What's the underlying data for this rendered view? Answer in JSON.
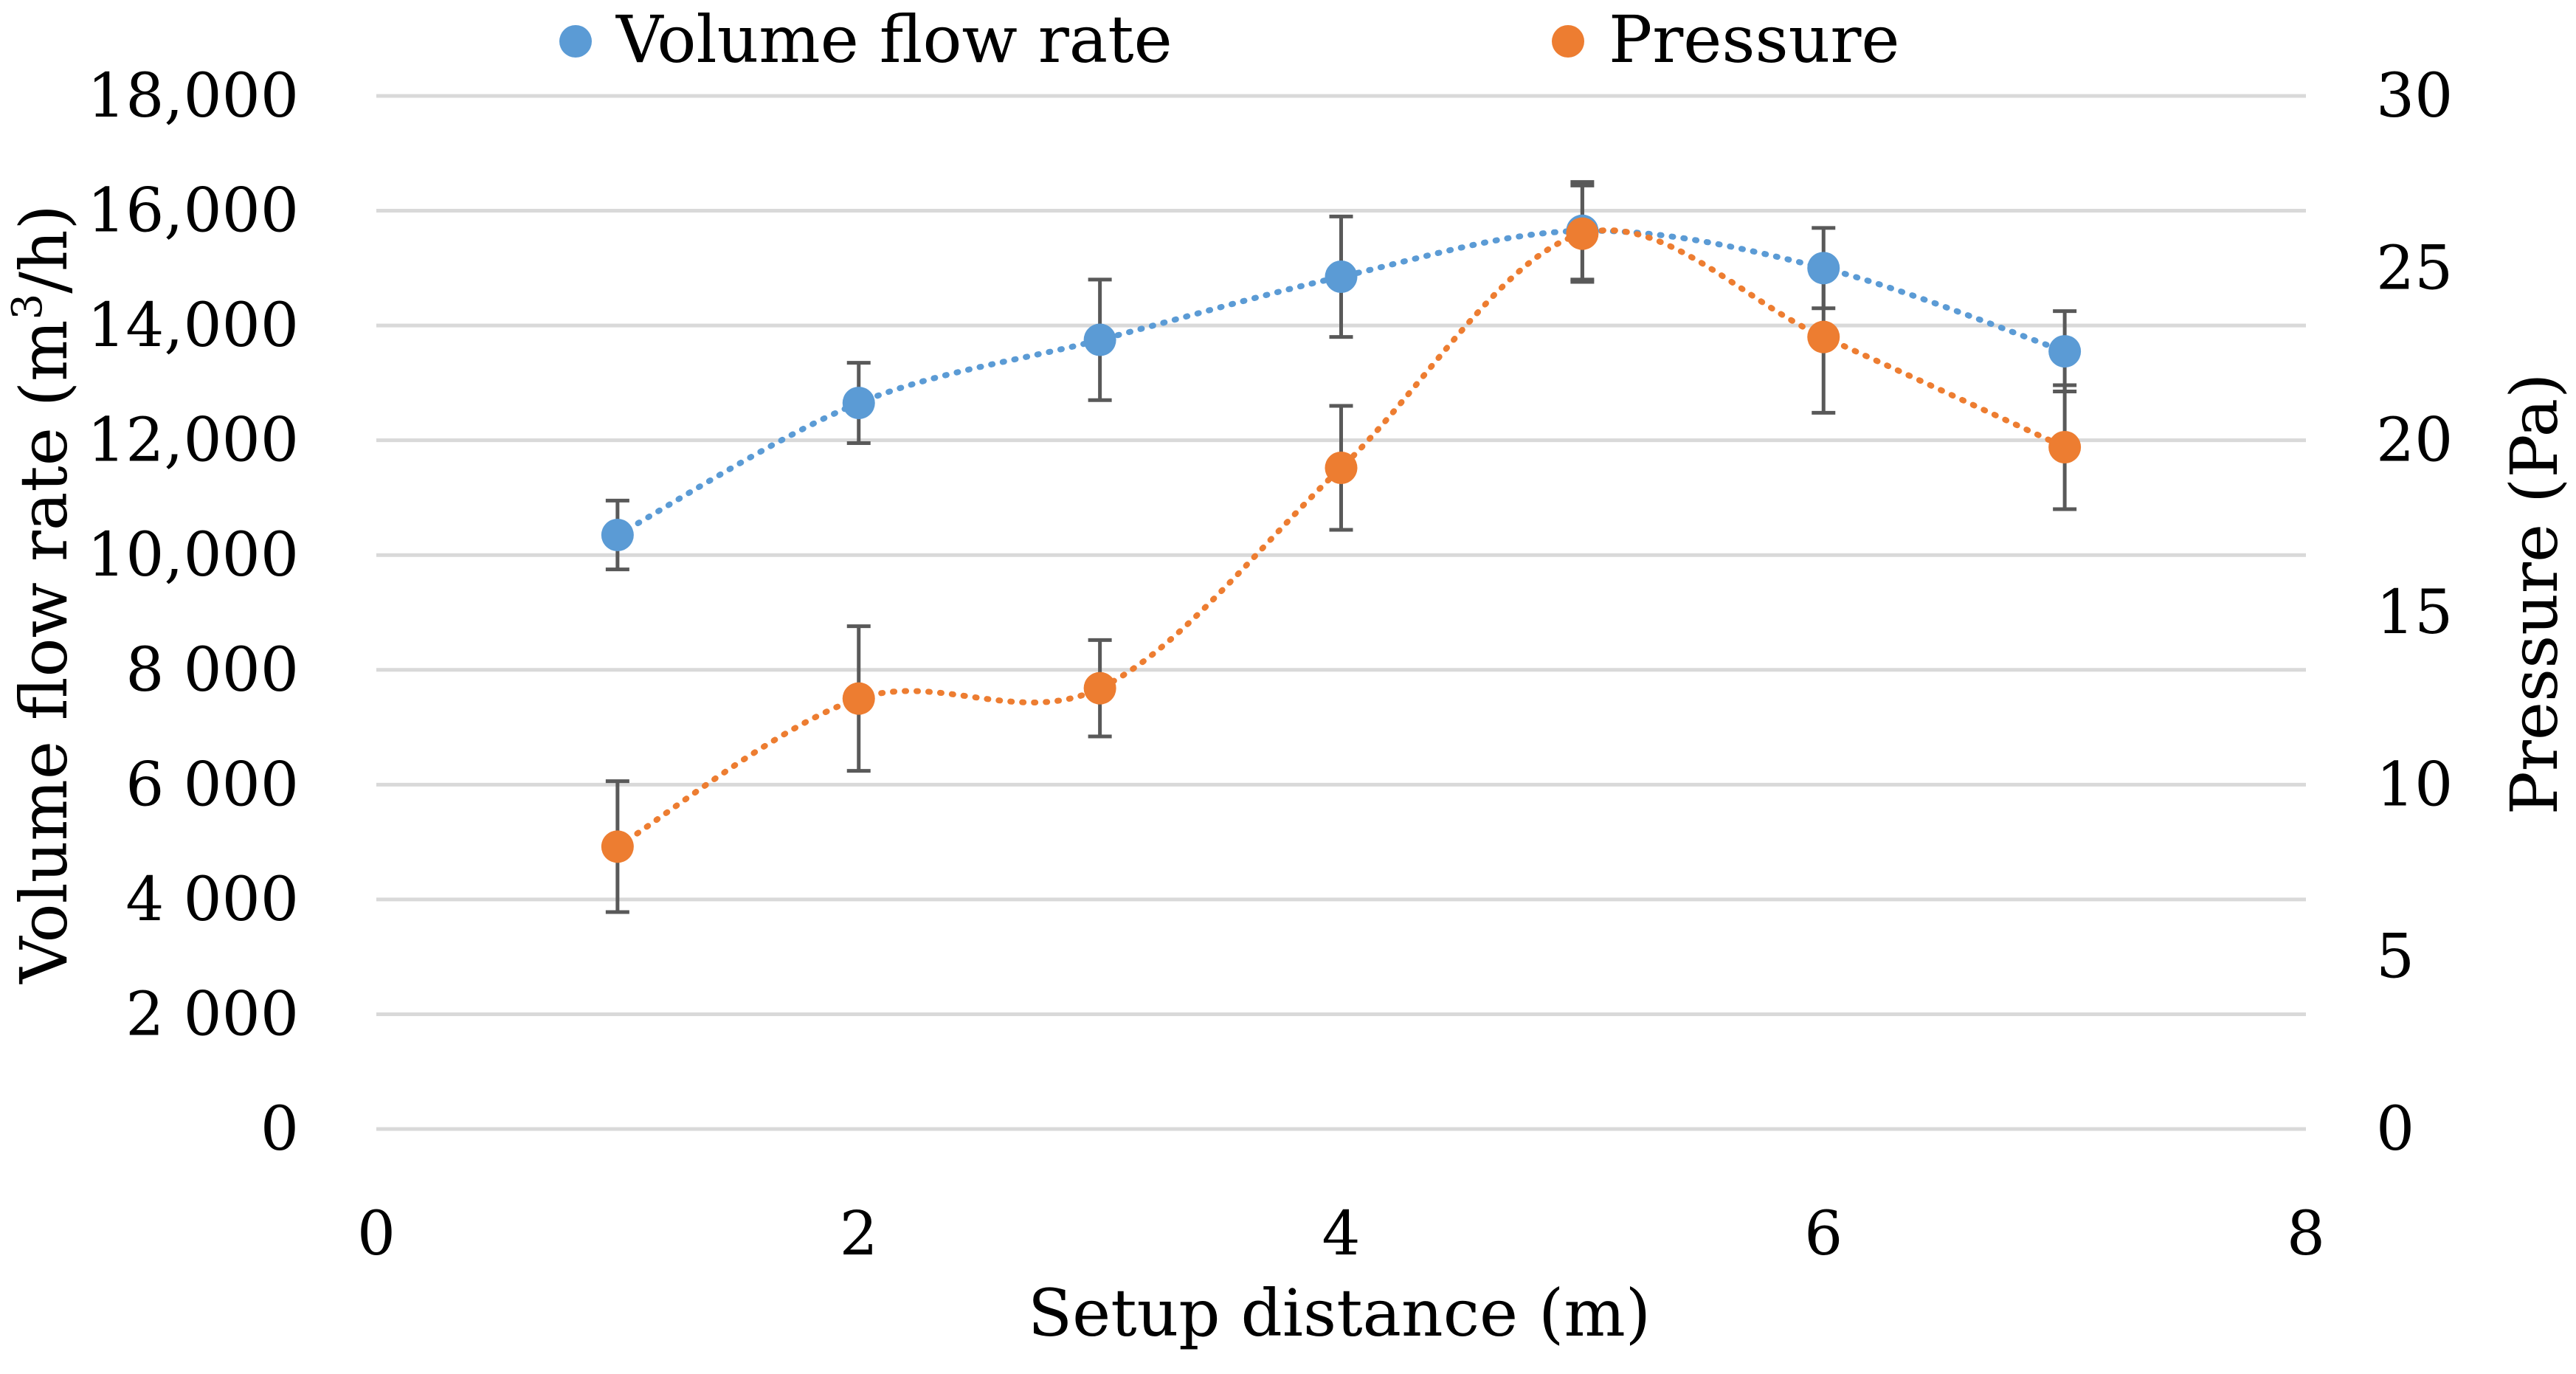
{
  "chart_data": {
    "type": "scatter",
    "title": "",
    "xlabel": "Setup distance (m)",
    "ylabel_left": "Volume flow rate (m3/h)",
    "ylabel_left_base": "Volume flow rate (m",
    "ylabel_left_sup": "3",
    "ylabel_left_tail": "/h)",
    "ylabel_right": "Pressure (Pa)",
    "xlim": [
      0,
      8
    ],
    "ylim_left": [
      0,
      18000
    ],
    "ylim_right": [
      0,
      30
    ],
    "x_ticks": [
      "0",
      "2",
      "4",
      "6",
      "8"
    ],
    "x_tick_values": [
      0,
      2,
      4,
      6,
      8
    ],
    "y_left_ticks": [
      "0",
      "2 000",
      "4 000",
      "6 000",
      "8 000",
      "10,000",
      "12,000",
      "14,000",
      "16,000",
      "18,000"
    ],
    "y_left_tick_values": [
      0,
      2000,
      4000,
      6000,
      8000,
      10000,
      12000,
      14000,
      16000,
      18000
    ],
    "y_right_ticks": [
      "0",
      "5",
      "10",
      "15",
      "20",
      "25",
      "30"
    ],
    "y_right_tick_values": [
      0,
      5,
      10,
      15,
      20,
      25,
      30
    ],
    "legend_position": "top",
    "series": [
      {
        "name": "Volume flow rate",
        "axis": "left",
        "color": "#5b9bd5",
        "x": [
          1,
          2,
          3,
          4,
          5,
          6,
          7
        ],
        "y": [
          10350,
          12650,
          13750,
          14850,
          15650,
          15000,
          13550
        ],
        "err": [
          600,
          700,
          1050,
          1050,
          850,
          700,
          700
        ]
      },
      {
        "name": "Pressure",
        "axis": "right",
        "color": "#ed7d31",
        "x": [
          1,
          2,
          3,
          4,
          5,
          6,
          7
        ],
        "y": [
          8.2,
          12.5,
          12.8,
          19.2,
          26.0,
          23.0,
          19.8
        ],
        "err": [
          1.9,
          2.1,
          1.4,
          1.8,
          1.4,
          2.2,
          1.8
        ]
      }
    ],
    "error_bar_color": "#595959"
  }
}
